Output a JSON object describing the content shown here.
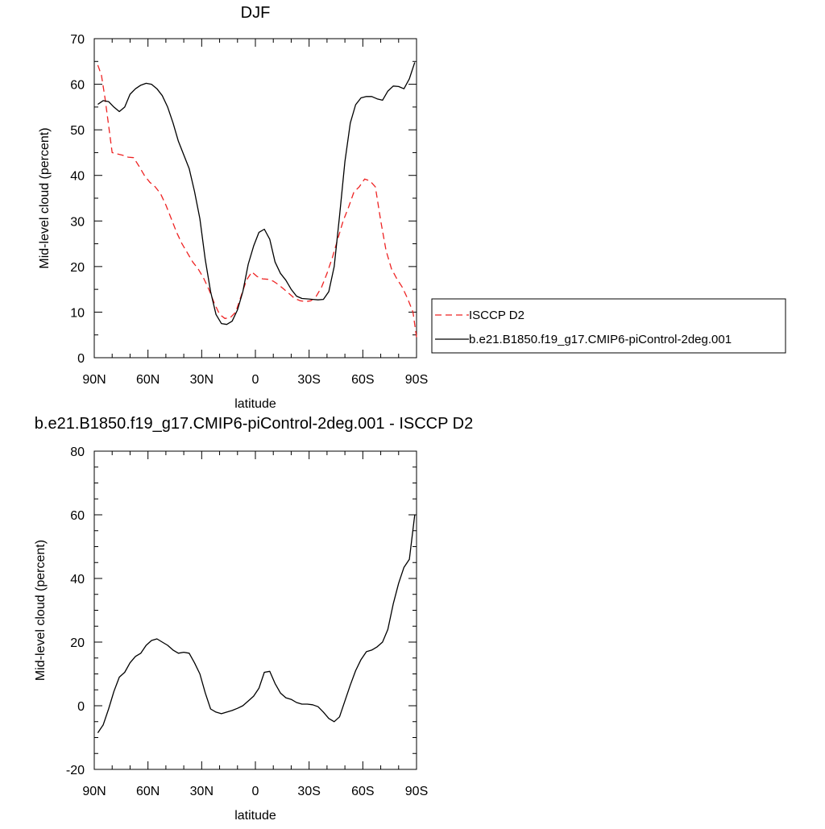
{
  "chart_data": [
    {
      "type": "line",
      "title": "DJF",
      "xlabel": "latitude",
      "ylabel": "Mid-level cloud (percent)",
      "xlim": [
        -90,
        90
      ],
      "ylim": [
        0,
        70
      ],
      "x_ticks": [
        {
          "value": -90,
          "label": "90N"
        },
        {
          "value": -60,
          "label": "60N"
        },
        {
          "value": -30,
          "label": "30N"
        },
        {
          "value": 0,
          "label": "0"
        },
        {
          "value": 30,
          "label": "30S"
        },
        {
          "value": 60,
          "label": "60S"
        },
        {
          "value": 90,
          "label": "90S"
        }
      ],
      "y_ticks": [
        0,
        10,
        20,
        30,
        40,
        50,
        60,
        70
      ],
      "legend": "right",
      "grid": false,
      "series": [
        {
          "name": "ISCCP D2",
          "color": "#ee2222",
          "dash": "dashed",
          "x": [
            -88,
            -86,
            -84,
            -82,
            -80,
            -77,
            -74,
            -71,
            -68,
            -65,
            -62,
            -59,
            -56,
            -53,
            -50,
            -47,
            -44,
            -41,
            -38,
            -35,
            -32,
            -29,
            -26,
            -23,
            -20,
            -17,
            -14,
            -11,
            -8,
            -5,
            -2,
            1,
            4,
            7,
            10,
            13,
            16,
            19,
            22,
            25,
            28,
            31,
            34,
            37,
            40,
            43,
            46,
            49,
            52,
            55,
            58,
            61,
            64,
            67,
            70,
            73,
            76,
            79,
            82,
            85,
            88
          ],
          "values": [
            64.2,
            62.0,
            57.0,
            51.0,
            45.0,
            44.7,
            44.4,
            44.0,
            43.9,
            42.0,
            40.0,
            38.5,
            37.5,
            36.0,
            33.5,
            30.5,
            27.5,
            25.0,
            23.0,
            21.0,
            19.5,
            17.5,
            15.0,
            12.0,
            9.5,
            8.6,
            8.8,
            10.0,
            13.5,
            17.0,
            18.8,
            17.8,
            17.3,
            17.2,
            16.8,
            16.0,
            15.0,
            14.0,
            13.0,
            12.5,
            12.3,
            12.5,
            13.5,
            15.5,
            18.5,
            22.0,
            26.0,
            30.0,
            33.0,
            36.3,
            37.5,
            39.2,
            38.8,
            37.5,
            30.0,
            23.5,
            19.5,
            17.3,
            15.5,
            13.0,
            10.0
          ],
          "x_tail": [
            90
          ],
          "values_tail": [
            4.5
          ]
        },
        {
          "name": "b.e21.B1850.f19_g17.CMIP6-piControl-2deg.001",
          "color": "#000000",
          "dash": "solid",
          "x": [
            -88,
            -85,
            -82,
            -79,
            -76,
            -73,
            -70,
            -67,
            -64,
            -61,
            -58,
            -55,
            -52,
            -49,
            -46,
            -43,
            -40,
            -37,
            -34,
            -31,
            -28,
            -25,
            -22,
            -19,
            -16,
            -13,
            -10,
            -7,
            -4,
            -1,
            2,
            5,
            8,
            11,
            14,
            17,
            20,
            23,
            26,
            29,
            32,
            35,
            38,
            41,
            44,
            47,
            50,
            53,
            56,
            59,
            62,
            65,
            68,
            71,
            74,
            77,
            80,
            83,
            86,
            89
          ],
          "values": [
            55.6,
            56.4,
            56.2,
            55.0,
            54.0,
            55.0,
            57.8,
            59.0,
            59.8,
            60.2,
            60.0,
            59.0,
            57.5,
            55.0,
            51.5,
            47.5,
            44.5,
            41.5,
            36.5,
            30.5,
            21.5,
            14.5,
            9.5,
            7.5,
            7.3,
            8.0,
            10.5,
            14.5,
            20.5,
            24.5,
            27.5,
            28.2,
            26.0,
            21.0,
            18.5,
            17.0,
            15.0,
            13.5,
            13.0,
            12.9,
            12.8,
            12.7,
            12.8,
            14.5,
            20.0,
            31.0,
            43.0,
            51.5,
            55.5,
            57.0,
            57.3,
            57.3,
            56.8,
            56.5,
            58.5,
            59.6,
            59.5,
            59.0,
            61.2,
            64.8
          ]
        }
      ]
    },
    {
      "type": "line",
      "title": "b.e21.B1850.f19_g17.CMIP6-piControl-2deg.001 - ISCCP D2",
      "xlabel": "latitude",
      "ylabel": "Mid-level cloud (percent)",
      "xlim": [
        -90,
        90
      ],
      "ylim": [
        -20,
        80
      ],
      "x_ticks": [
        {
          "value": -90,
          "label": "90N"
        },
        {
          "value": -60,
          "label": "60N"
        },
        {
          "value": -30,
          "label": "30N"
        },
        {
          "value": 0,
          "label": "0"
        },
        {
          "value": 30,
          "label": "30S"
        },
        {
          "value": 60,
          "label": "60S"
        },
        {
          "value": 90,
          "label": "90S"
        }
      ],
      "y_ticks": [
        -20,
        0,
        20,
        40,
        60,
        80
      ],
      "grid": false,
      "series": [
        {
          "color": "#000000",
          "dash": "solid",
          "x": [
            -88,
            -85,
            -82,
            -79,
            -76,
            -73,
            -70,
            -67,
            -64,
            -61,
            -58,
            -55,
            -52,
            -49,
            -46,
            -43,
            -40,
            -37,
            -34,
            -31,
            -28,
            -25,
            -22,
            -19,
            -16,
            -13,
            -10,
            -7,
            -4,
            -1,
            2,
            5,
            8,
            11,
            14,
            17,
            20,
            23,
            26,
            29,
            32,
            35,
            38,
            41,
            44,
            47,
            50,
            53,
            56,
            59,
            62,
            65,
            68,
            71,
            74,
            77,
            80,
            83,
            86,
            89
          ],
          "values": [
            -8.5,
            -6.0,
            -1.0,
            4.5,
            9.0,
            10.5,
            13.5,
            15.5,
            16.5,
            19.0,
            20.5,
            21.0,
            20.0,
            19.0,
            17.5,
            16.5,
            16.8,
            16.5,
            13.5,
            10.0,
            4.0,
            -1.0,
            -2.0,
            -2.5,
            -2.0,
            -1.5,
            -0.8,
            0.0,
            1.5,
            3.0,
            5.5,
            10.5,
            10.8,
            7.0,
            4.0,
            2.5,
            2.0,
            1.0,
            0.5,
            0.5,
            0.3,
            -0.3,
            -2.0,
            -4.0,
            -5.0,
            -3.5,
            1.5,
            6.5,
            11.0,
            14.5,
            17.0,
            17.5,
            18.5,
            20.0,
            24.0,
            32.0,
            38.5,
            43.5,
            46.0,
            60.0
          ]
        }
      ]
    }
  ]
}
